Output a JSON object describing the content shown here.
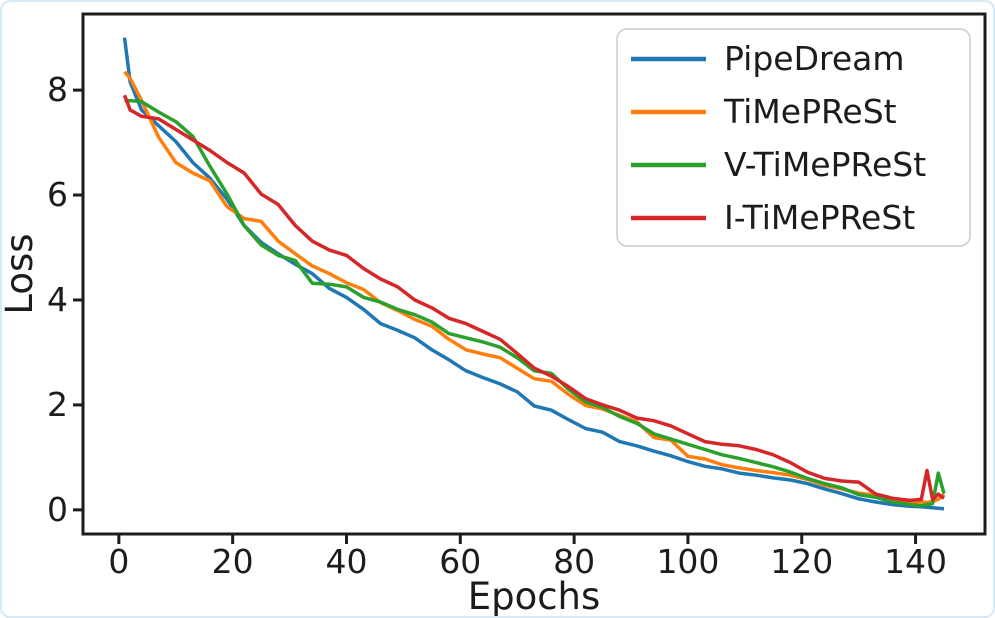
{
  "figure": {
    "background": "#ffffff",
    "border_color": "#d6e9f5",
    "axis_color": "#1c1c1c"
  },
  "chart_data": {
    "type": "line",
    "title": "",
    "xlabel": "Epochs",
    "ylabel": "Loss",
    "grid": false,
    "legend_position": "upper right",
    "xlim": [
      -6.3,
      152.2
    ],
    "ylim": [
      -0.46,
      9.45
    ],
    "x_ticks": [
      0,
      20,
      40,
      60,
      80,
      100,
      120,
      140
    ],
    "y_ticks": [
      0,
      2,
      4,
      6,
      8
    ],
    "x": [
      1,
      2,
      4,
      7,
      10,
      13,
      16,
      19,
      22,
      25,
      28,
      31,
      34,
      37,
      40,
      43,
      46,
      49,
      52,
      55,
      58,
      61,
      64,
      67,
      70,
      73,
      76,
      79,
      82,
      85,
      88,
      91,
      94,
      97,
      100,
      103,
      106,
      109,
      112,
      115,
      118,
      121,
      124,
      127,
      130,
      133,
      136,
      139,
      141,
      142,
      143,
      144,
      145
    ],
    "series": [
      {
        "name": "PipeDream",
        "color": "#1f77b4",
        "values": [
          9.0,
          8.15,
          7.62,
          7.32,
          7.02,
          6.62,
          6.32,
          5.92,
          5.42,
          5.1,
          4.88,
          4.68,
          4.5,
          4.22,
          4.05,
          3.82,
          3.55,
          3.42,
          3.28,
          3.05,
          2.86,
          2.65,
          2.52,
          2.4,
          2.25,
          1.98,
          1.9,
          1.72,
          1.55,
          1.48,
          1.3,
          1.22,
          1.12,
          1.03,
          0.92,
          0.83,
          0.78,
          0.7,
          0.66,
          0.61,
          0.57,
          0.5,
          0.4,
          0.31,
          0.21,
          0.15,
          0.1,
          0.07,
          0.06,
          0.05,
          0.04,
          0.03,
          0.02
        ]
      },
      {
        "name": "TiMePReSt",
        "color": "#ff7f0e",
        "values": [
          8.35,
          8.22,
          7.8,
          7.1,
          6.62,
          6.42,
          6.27,
          5.78,
          5.55,
          5.5,
          5.12,
          4.88,
          4.65,
          4.5,
          4.33,
          4.2,
          3.95,
          3.8,
          3.63,
          3.5,
          3.25,
          3.05,
          2.97,
          2.9,
          2.7,
          2.5,
          2.45,
          2.2,
          1.99,
          1.92,
          1.8,
          1.68,
          1.38,
          1.33,
          1.02,
          0.97,
          0.86,
          0.8,
          0.75,
          0.71,
          0.66,
          0.58,
          0.47,
          0.4,
          0.32,
          0.28,
          0.21,
          0.16,
          0.15,
          0.14,
          0.16,
          0.2,
          0.3
        ]
      },
      {
        "name": "V-TiMePReSt",
        "color": "#2ca02c",
        "values": [
          7.8,
          7.8,
          7.78,
          7.58,
          7.4,
          7.12,
          6.55,
          6.02,
          5.42,
          5.05,
          4.85,
          4.75,
          4.32,
          4.3,
          4.25,
          4.05,
          3.96,
          3.82,
          3.72,
          3.58,
          3.36,
          3.28,
          3.2,
          3.1,
          2.9,
          2.65,
          2.6,
          2.3,
          2.06,
          1.95,
          1.78,
          1.65,
          1.45,
          1.35,
          1.25,
          1.15,
          1.05,
          0.98,
          0.9,
          0.82,
          0.72,
          0.6,
          0.5,
          0.42,
          0.29,
          0.24,
          0.15,
          0.1,
          0.08,
          0.1,
          0.12,
          0.7,
          0.31
        ]
      },
      {
        "name": "I-TiMePReSt",
        "color": "#d62728",
        "values": [
          7.9,
          7.62,
          7.5,
          7.45,
          7.25,
          7.05,
          6.85,
          6.62,
          6.42,
          6.02,
          5.82,
          5.42,
          5.12,
          4.95,
          4.85,
          4.6,
          4.4,
          4.25,
          4.0,
          3.85,
          3.65,
          3.55,
          3.4,
          3.25,
          2.98,
          2.7,
          2.55,
          2.35,
          2.12,
          2.0,
          1.9,
          1.75,
          1.7,
          1.6,
          1.45,
          1.3,
          1.25,
          1.22,
          1.15,
          1.05,
          0.9,
          0.72,
          0.6,
          0.55,
          0.53,
          0.3,
          0.22,
          0.18,
          0.2,
          0.75,
          0.2,
          0.3,
          0.22
        ]
      }
    ]
  }
}
